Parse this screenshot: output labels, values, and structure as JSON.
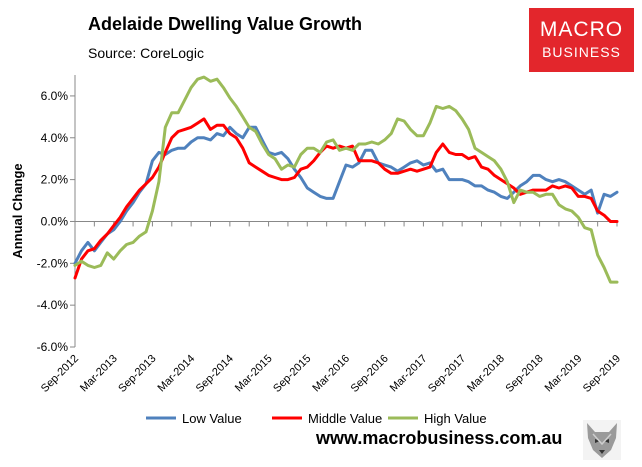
{
  "header": {
    "title": "Adelaide Dwelling Value Growth",
    "source": "Source: CoreLogic"
  },
  "logo": {
    "line1": "MACRO",
    "line2": "BUSINESS",
    "color": "#e3262c"
  },
  "footer": {
    "website": "www.macrobusiness.com.au",
    "icon": "wolf-icon"
  },
  "chart_data": {
    "type": "line",
    "title": "Adelaide Dwelling Value Growth",
    "xlabel": "",
    "ylabel": "Annual Change",
    "ylim": [
      -6,
      7
    ],
    "ytick_values": [
      -6,
      -4,
      -2,
      0,
      2,
      4,
      6
    ],
    "yticks": [
      "-6.0%",
      "-4.0%",
      "-2.0%",
      "0.0%",
      "2.0%",
      "4.0%",
      "6.0%"
    ],
    "xticks": [
      {
        "label": "Sep-2012",
        "index": 0
      },
      {
        "label": "Mar-2013",
        "index": 6
      },
      {
        "label": "Sep-2013",
        "index": 12
      },
      {
        "label": "Mar-2014",
        "index": 18
      },
      {
        "label": "Sep-2014",
        "index": 24
      },
      {
        "label": "Mar-2015",
        "index": 30
      },
      {
        "label": "Sep-2015",
        "index": 36
      },
      {
        "label": "Mar-2016",
        "index": 42
      },
      {
        "label": "Sep-2016",
        "index": 48
      },
      {
        "label": "Mar-2017",
        "index": 54
      },
      {
        "label": "Sep-2017",
        "index": 60
      },
      {
        "label": "Mar-2018",
        "index": 66
      },
      {
        "label": "Sep-2018",
        "index": 72
      },
      {
        "label": "Mar-2019",
        "index": 78
      },
      {
        "label": "Sep-2019",
        "index": 84
      }
    ],
    "x_count": 85,
    "grid": false,
    "legend_position": "bottom",
    "series": [
      {
        "name": "Low Value",
        "color": "#4f81bd",
        "values": [
          -2.0,
          -1.4,
          -1.0,
          -1.4,
          -1.0,
          -0.6,
          -0.4,
          0.0,
          0.5,
          0.9,
          1.4,
          1.8,
          2.9,
          3.3,
          3.2,
          3.4,
          3.5,
          3.5,
          3.8,
          4.0,
          4.0,
          3.9,
          4.2,
          4.1,
          4.5,
          4.2,
          4.0,
          4.5,
          4.5,
          3.9,
          3.3,
          3.2,
          3.3,
          3.0,
          2.5,
          2.1,
          1.6,
          1.4,
          1.2,
          1.1,
          1.1,
          1.9,
          2.7,
          2.6,
          2.8,
          3.4,
          3.4,
          2.8,
          2.7,
          2.6,
          2.4,
          2.6,
          2.8,
          2.9,
          2.7,
          2.8,
          2.4,
          2.5,
          2.0,
          2.0,
          2.0,
          1.9,
          1.7,
          1.7,
          1.5,
          1.4,
          1.2,
          1.1,
          1.4,
          1.7,
          1.9,
          2.2,
          2.2,
          2.0,
          1.9,
          2.0,
          1.9,
          1.7,
          1.5,
          1.3,
          1.5,
          0.4,
          1.3,
          1.2,
          1.4
        ]
      },
      {
        "name": "Middle Value",
        "color": "#ff0000",
        "values": [
          -2.7,
          -1.8,
          -1.4,
          -1.3,
          -0.9,
          -0.6,
          -0.2,
          0.2,
          0.7,
          1.1,
          1.5,
          1.8,
          2.1,
          2.6,
          3.3,
          4.0,
          4.3,
          4.4,
          4.5,
          4.7,
          4.9,
          4.4,
          4.6,
          4.6,
          4.2,
          4.0,
          3.5,
          2.8,
          2.6,
          2.4,
          2.2,
          2.1,
          2.0,
          2.0,
          2.1,
          2.5,
          2.6,
          2.9,
          3.3,
          3.6,
          3.5,
          3.6,
          3.5,
          3.6,
          2.9,
          2.9,
          2.9,
          2.8,
          2.5,
          2.3,
          2.3,
          2.4,
          2.5,
          2.4,
          2.5,
          2.6,
          3.3,
          3.7,
          3.3,
          3.2,
          3.2,
          3.0,
          3.1,
          2.6,
          2.5,
          2.2,
          2.0,
          1.8,
          1.6,
          1.3,
          1.4,
          1.5,
          1.5,
          1.5,
          1.7,
          1.6,
          1.7,
          1.6,
          1.2,
          1.2,
          1.1,
          0.5,
          0.3,
          0.0,
          0.0
        ]
      },
      {
        "name": "High Value",
        "color": "#9bbb59",
        "values": [
          -2.1,
          -1.9,
          -2.1,
          -2.2,
          -2.1,
          -1.5,
          -1.8,
          -1.4,
          -1.1,
          -1.0,
          -0.7,
          -0.5,
          0.5,
          1.9,
          4.5,
          5.2,
          5.2,
          5.8,
          6.4,
          6.8,
          6.9,
          6.7,
          6.8,
          6.4,
          5.9,
          5.5,
          5.0,
          4.5,
          4.3,
          3.7,
          3.2,
          3.0,
          2.5,
          2.7,
          2.6,
          3.2,
          3.5,
          3.5,
          3.3,
          3.8,
          3.9,
          3.4,
          3.5,
          3.4,
          3.7,
          3.7,
          3.8,
          3.7,
          3.9,
          4.2,
          4.9,
          4.8,
          4.4,
          4.1,
          4.1,
          4.7,
          5.5,
          5.4,
          5.5,
          5.3,
          4.9,
          4.4,
          3.5,
          3.3,
          3.1,
          2.9,
          2.5,
          1.9,
          0.9,
          1.5,
          1.4,
          1.4,
          1.2,
          1.3,
          1.3,
          0.8,
          0.6,
          0.5,
          0.2,
          -0.3,
          -0.4,
          -1.6,
          -2.2,
          -2.9,
          -2.9
        ]
      }
    ]
  }
}
